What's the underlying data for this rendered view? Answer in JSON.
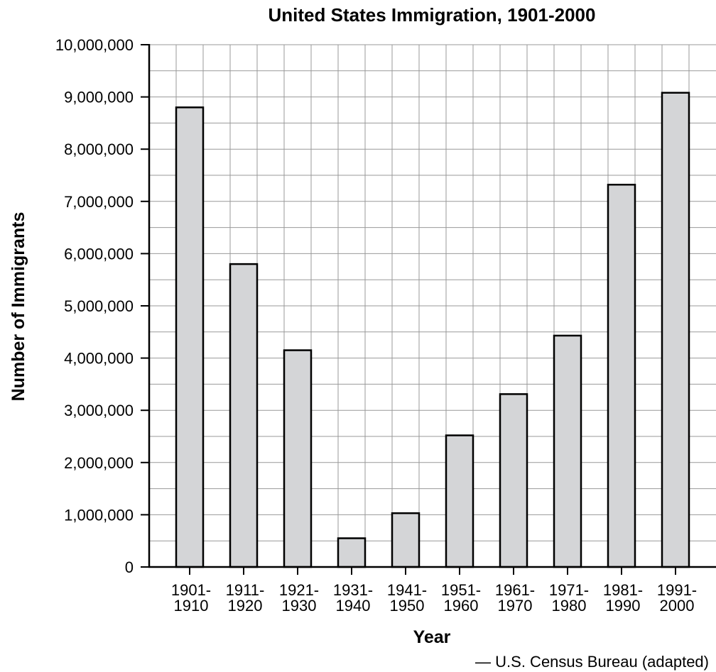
{
  "chart_data": {
    "type": "bar",
    "title": "United States Immigration, 1901-2000",
    "xlabel": "Year",
    "ylabel": "Number of Immigrants",
    "source": "— U.S. Census Bureau (adapted)",
    "categories": [
      [
        "1901-",
        "1910"
      ],
      [
        "1911-",
        "1920"
      ],
      [
        "1921-",
        "1930"
      ],
      [
        "1931-",
        "1940"
      ],
      [
        "1941-",
        "1950"
      ],
      [
        "1951-",
        "1960"
      ],
      [
        "1961-",
        "1970"
      ],
      [
        "1971-",
        "1980"
      ],
      [
        "1981-",
        "1990"
      ],
      [
        "1991-",
        "2000"
      ]
    ],
    "values": [
      8800000,
      5800000,
      4150000,
      550000,
      1030000,
      2520000,
      3310000,
      4430000,
      7320000,
      9080000
    ],
    "ylim": [
      0,
      10000000
    ],
    "yticks": [
      "0",
      "1,000,000",
      "2,000,000",
      "3,000,000",
      "4,000,000",
      "5,000,000",
      "6,000,000",
      "7,000,000",
      "8,000,000",
      "9,000,000",
      "10,000,000"
    ],
    "ytick_values": [
      0,
      1000000,
      2000000,
      3000000,
      4000000,
      5000000,
      6000000,
      7000000,
      8000000,
      9000000,
      10000000
    ],
    "grid": true,
    "colors": {
      "bar_fill": "#d4d5d7",
      "bar_stroke": "#000000",
      "grid": "#999999"
    }
  }
}
